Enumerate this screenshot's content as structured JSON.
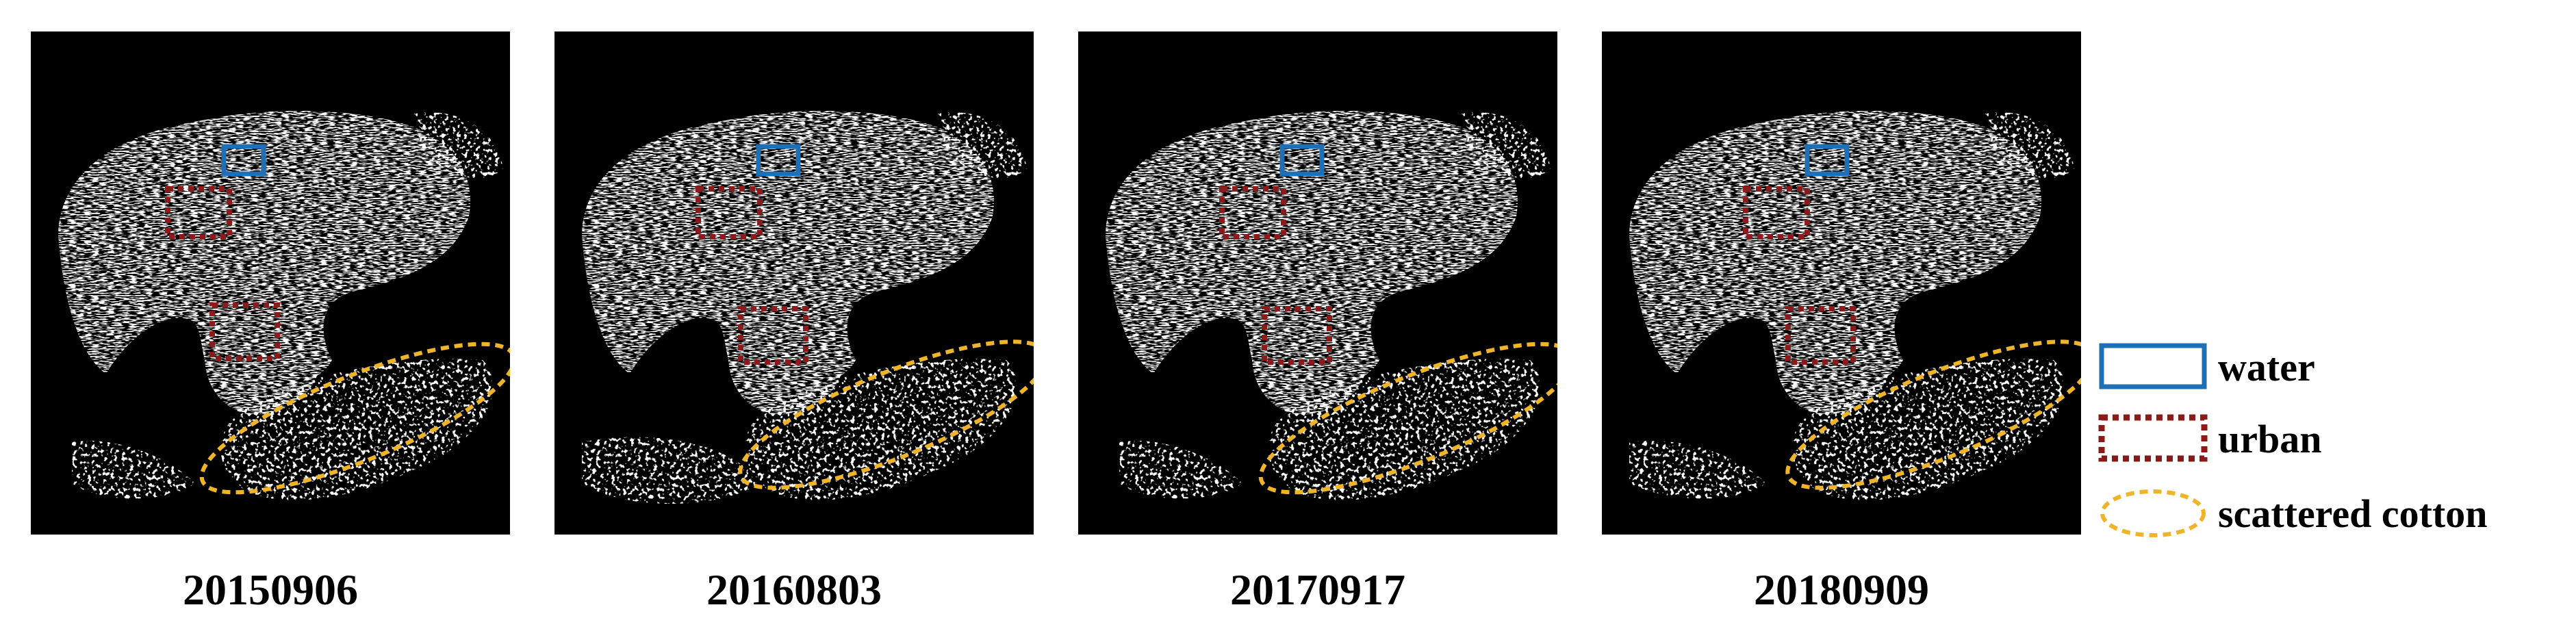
{
  "panels": [
    {
      "date": "20150906"
    },
    {
      "date": "20160803"
    },
    {
      "date": "20170917"
    },
    {
      "date": "20180909"
    }
  ],
  "legend": {
    "water": {
      "label": "water",
      "color": "#1f6fb4"
    },
    "urban": {
      "label": "urban",
      "color": "#8b1a1a"
    },
    "scattered_cotton": {
      "label": "scattered cotton",
      "color": "#f0b429"
    }
  },
  "colors": {
    "background": "#000000",
    "cotton": "#ffffff"
  }
}
